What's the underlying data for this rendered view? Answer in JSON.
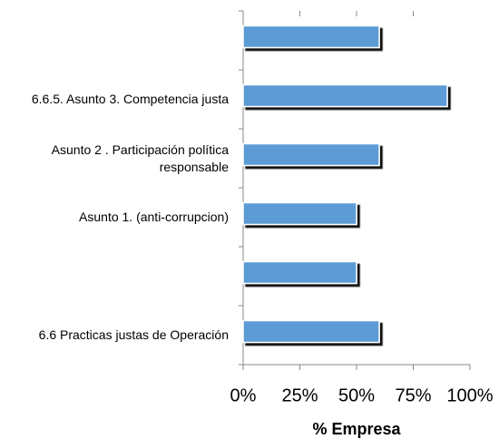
{
  "chart_data": {
    "type": "bar",
    "orientation": "horizontal",
    "categories": [
      null,
      "6.6.5. Asunto 3. Competencia justa",
      "Asunto 2 . Participación política responsable",
      "Asunto 1. (anti-corrupcion)",
      null,
      "6.6 Practicas justas de Operación"
    ],
    "values": [
      60,
      90,
      60,
      50,
      50,
      60
    ],
    "color": "#5b9bd5",
    "xlabel": "% Empresa",
    "xlim": [
      0,
      100
    ],
    "xticks": [
      {
        "value": 0,
        "label": "0%"
      },
      {
        "value": 25,
        "label": "25%"
      },
      {
        "value": 50,
        "label": "50%"
      },
      {
        "value": 75,
        "label": "75%"
      },
      {
        "value": 100,
        "label": "100%"
      }
    ]
  }
}
